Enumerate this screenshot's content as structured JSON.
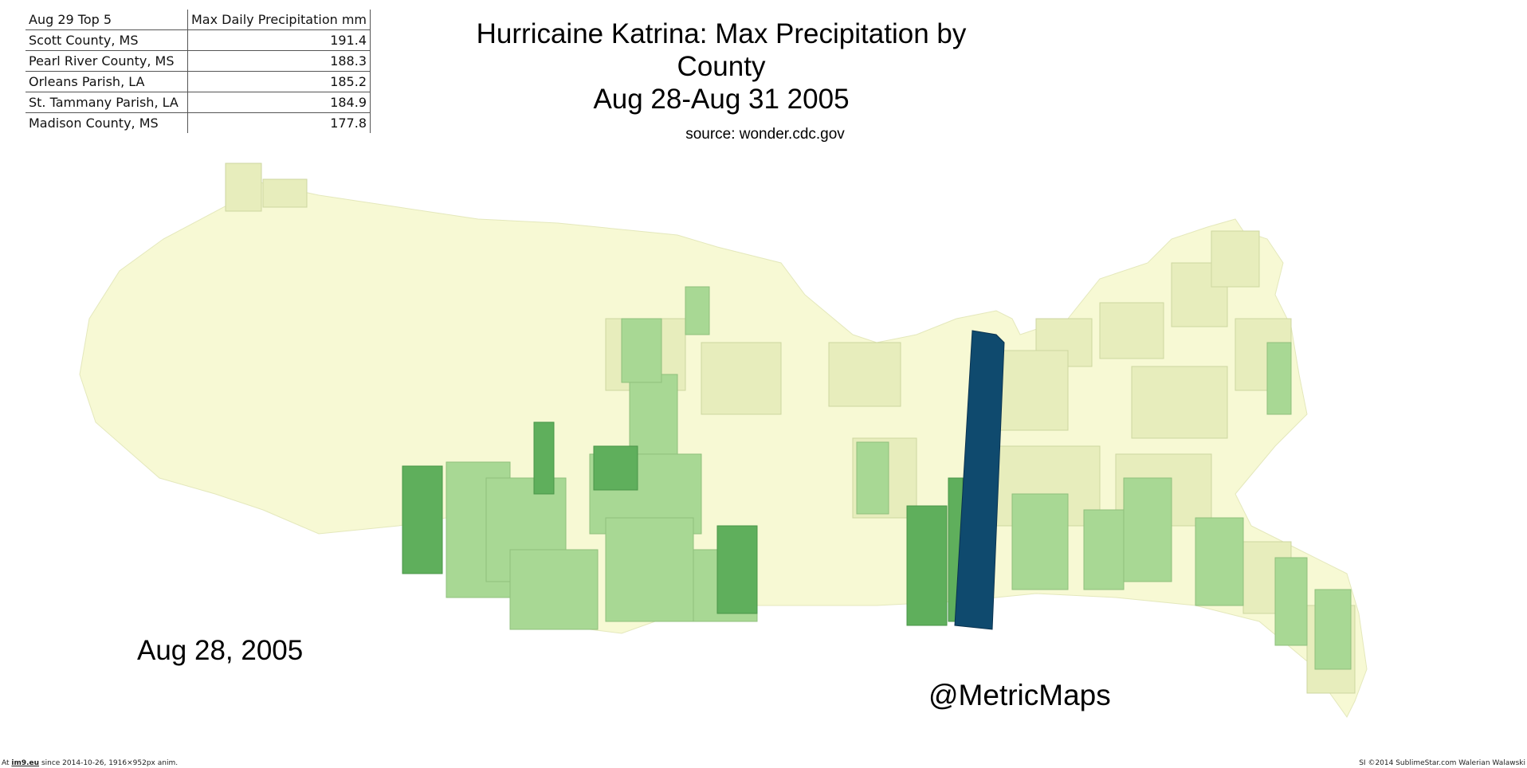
{
  "title_line1": "Hurricaine Katrina: Max Precipitation by County",
  "title_line2": "Aug 28-Aug 31 2005",
  "source": "source: wonder.cdc.gov",
  "date_label": "Aug 28, 2005",
  "handle": "@MetricMaps",
  "top5": {
    "header_col1": "Aug 29 Top 5",
    "header_col2": "Max Daily Precipitation mm",
    "rows": [
      {
        "county": "Scott County, MS",
        "value": "191.4"
      },
      {
        "county": "Pearl River County, MS",
        "value": "188.3"
      },
      {
        "county": "Orleans Parish, LA",
        "value": "185.2"
      },
      {
        "county": "St. Tammany Parish, LA",
        "value": "184.9"
      },
      {
        "county": "Madison County, MS",
        "value": "177.8"
      }
    ]
  },
  "footer": {
    "prefix": "At",
    "site": "im9.eu",
    "suffix": "since 2014-10-26, 1916×952px anim.",
    "right": "SI ©2014 SublimeStar.com Walerian Walawski"
  },
  "colors": {
    "land_base": "#f7f9d4",
    "low_precip": "#e7edbc",
    "mid_precip": "#a8d894",
    "high_precip": "#5faf5c",
    "max_precip": "#0f4a6e"
  }
}
